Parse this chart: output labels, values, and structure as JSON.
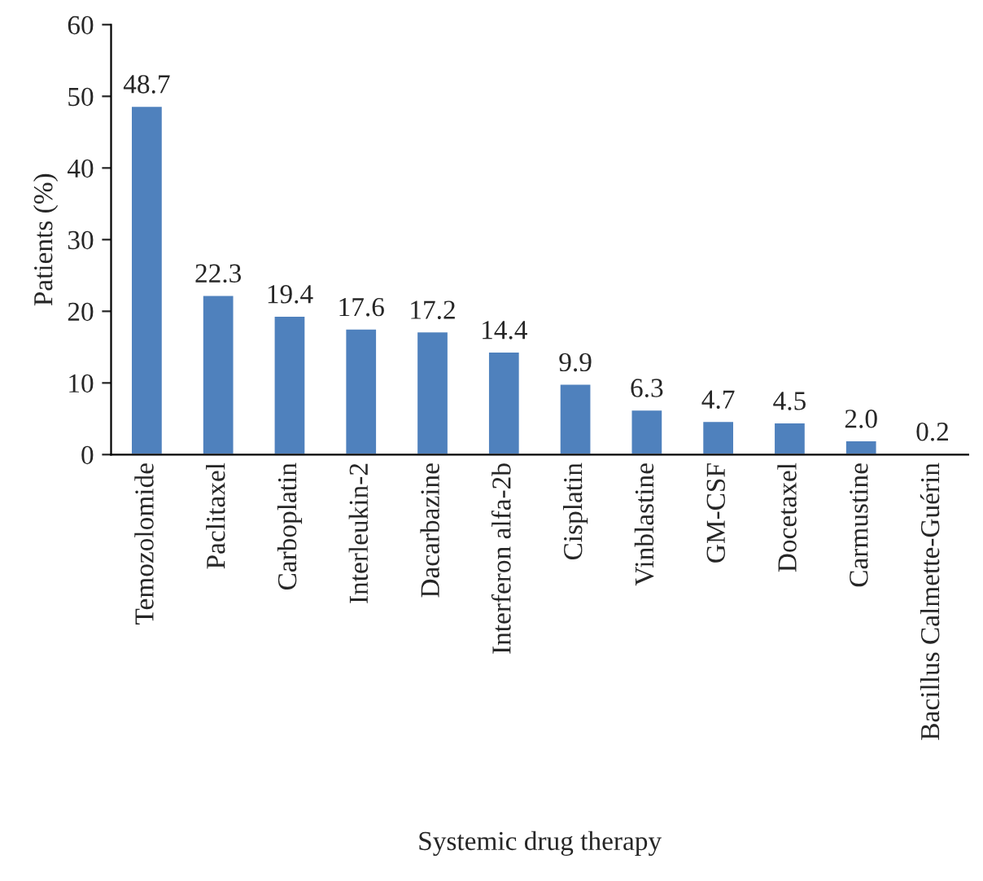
{
  "chart_data": {
    "type": "bar",
    "xlabel": "Systemic drug therapy",
    "ylabel": "Patients (%)",
    "categories": [
      "Temozolomide",
      "Paclitaxel",
      "Carboplatin",
      "Interleukin-2",
      "Dacarbazine",
      "Interferon alfa-2b",
      "Cisplatin",
      "Vinblastine",
      "GM-CSF",
      "Docetaxel",
      "Carmustine",
      "Bacillus Calmette-Guérin"
    ],
    "values": [
      48.7,
      22.3,
      19.4,
      17.6,
      17.2,
      14.4,
      9.9,
      6.3,
      4.7,
      4.5,
      2.0,
      0.2
    ],
    "value_labels": [
      "48.7",
      "22.3",
      "19.4",
      "17.6",
      "17.2",
      "14.4",
      "9.9",
      "6.3",
      "4.7",
      "4.5",
      "2.0",
      "0.2"
    ],
    "color": "#4f81bd",
    "ylim": [
      0,
      60
    ],
    "yticks": [
      0,
      10,
      20,
      30,
      40,
      50,
      60
    ],
    "grid": false,
    "legend": false
  }
}
